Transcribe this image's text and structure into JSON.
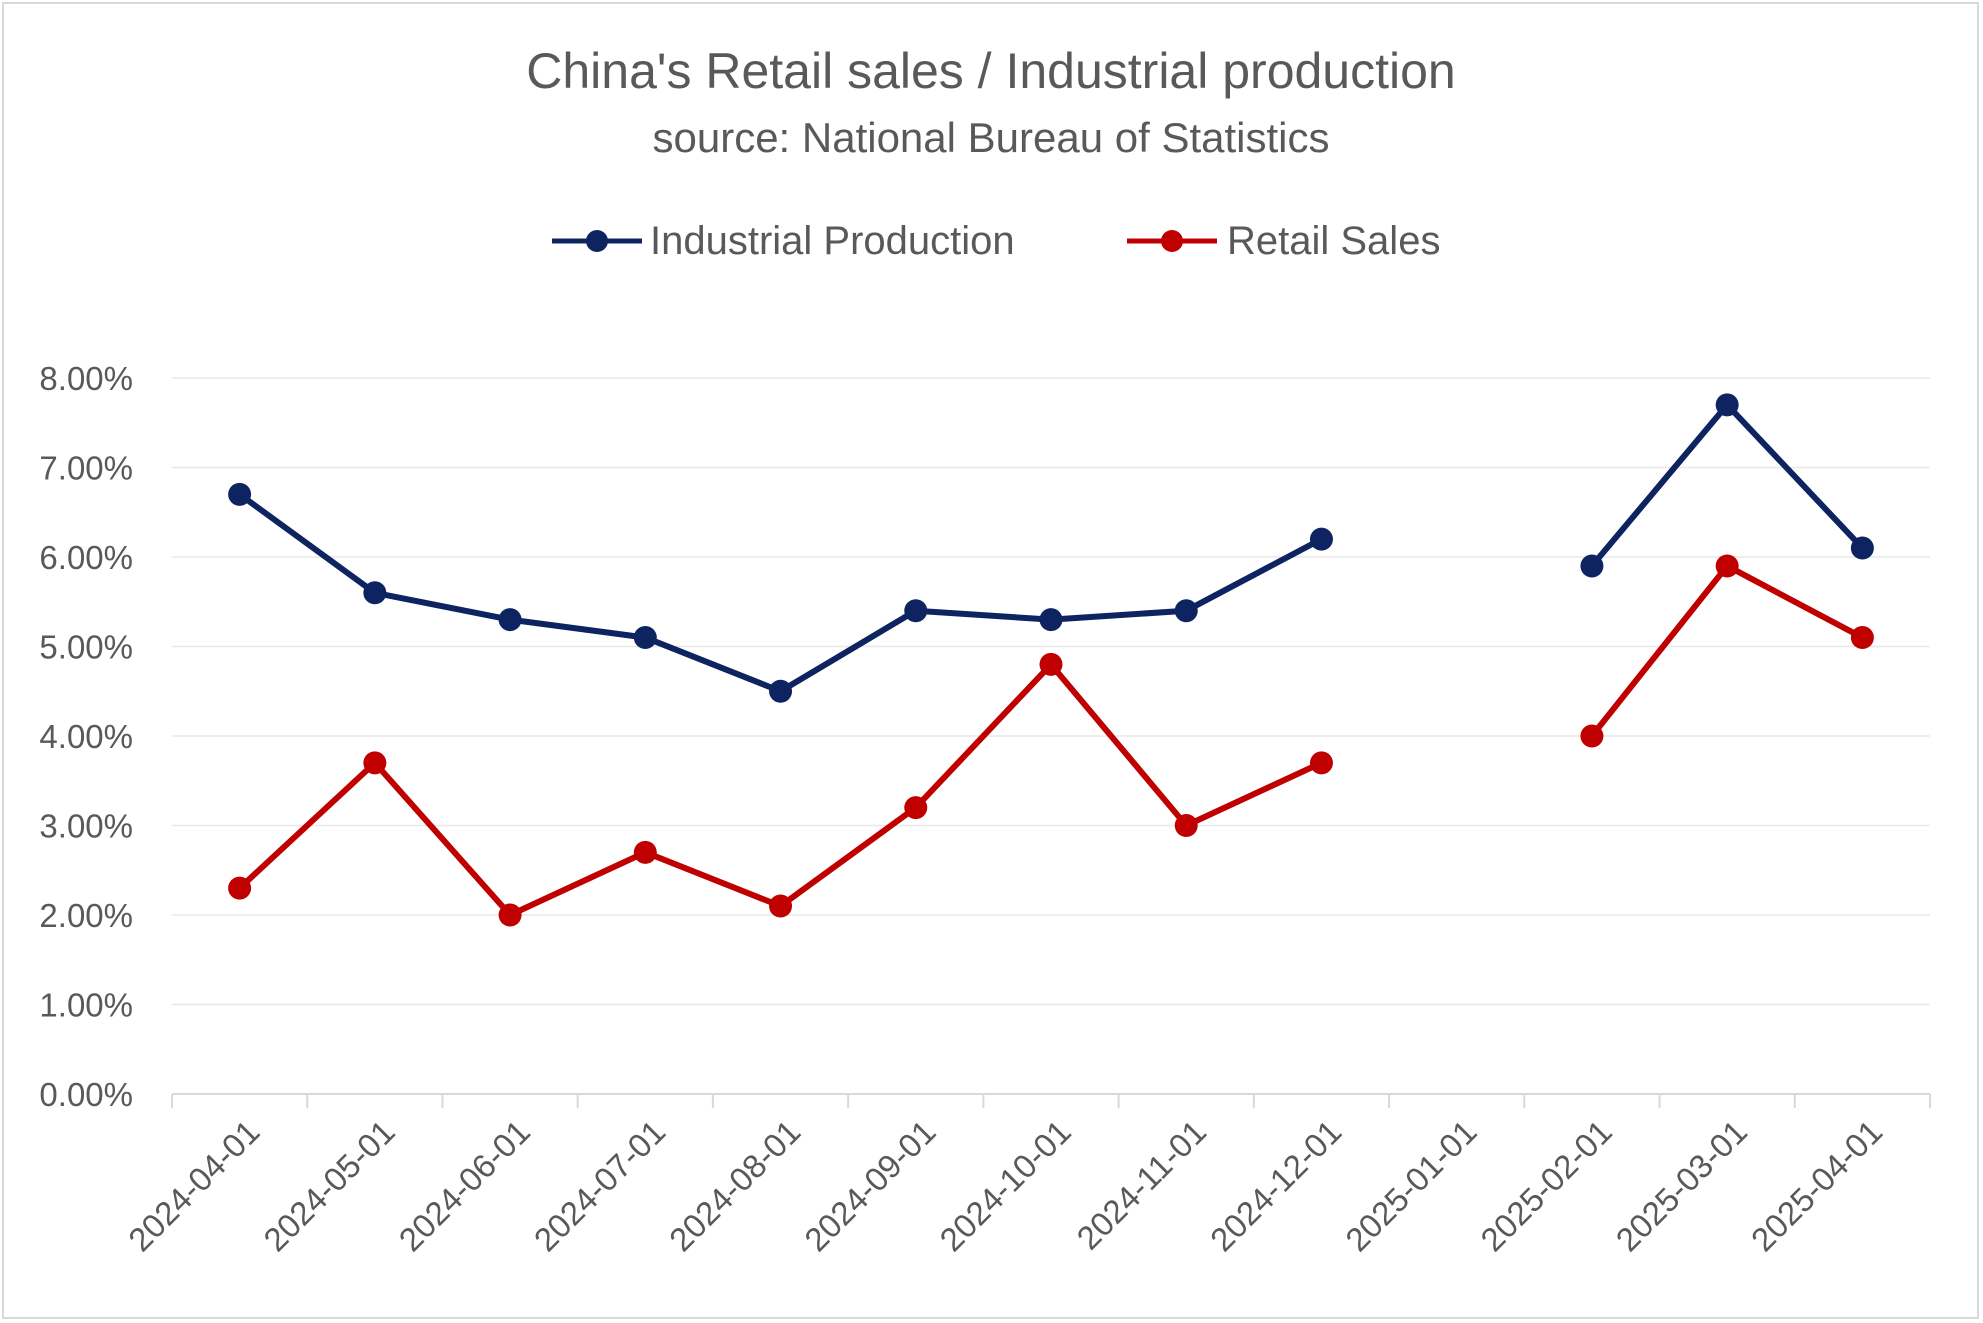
{
  "chart_data": {
    "type": "line",
    "title": "China's Retail sales / Industrial production",
    "subtitle": "source: National Bureau of Statistics",
    "categories": [
      "2024-04-01",
      "2024-05-01",
      "2024-06-01",
      "2024-07-01",
      "2024-08-01",
      "2024-09-01",
      "2024-10-01",
      "2024-11-01",
      "2024-12-01",
      "2025-01-01",
      "2025-02-01",
      "2025-03-01",
      "2025-04-01"
    ],
    "y_tick_labels": [
      "0.00%",
      "1.00%",
      "2.00%",
      "3.00%",
      "4.00%",
      "5.00%",
      "6.00%",
      "7.00%",
      "8.00%"
    ],
    "ylim": [
      0,
      8
    ],
    "grid": true,
    "legend_position": "top",
    "series": [
      {
        "name": "Industrial Production",
        "color": "#0d2461",
        "values": [
          6.7,
          5.6,
          5.3,
          5.1,
          4.5,
          5.4,
          5.3,
          5.4,
          6.2,
          null,
          5.9,
          7.7,
          6.1
        ]
      },
      {
        "name": "Retail Sales",
        "color": "#c00000",
        "values": [
          2.3,
          3.7,
          2.0,
          2.7,
          2.1,
          3.2,
          4.8,
          3.0,
          3.7,
          null,
          4.0,
          5.9,
          5.1
        ]
      }
    ]
  }
}
